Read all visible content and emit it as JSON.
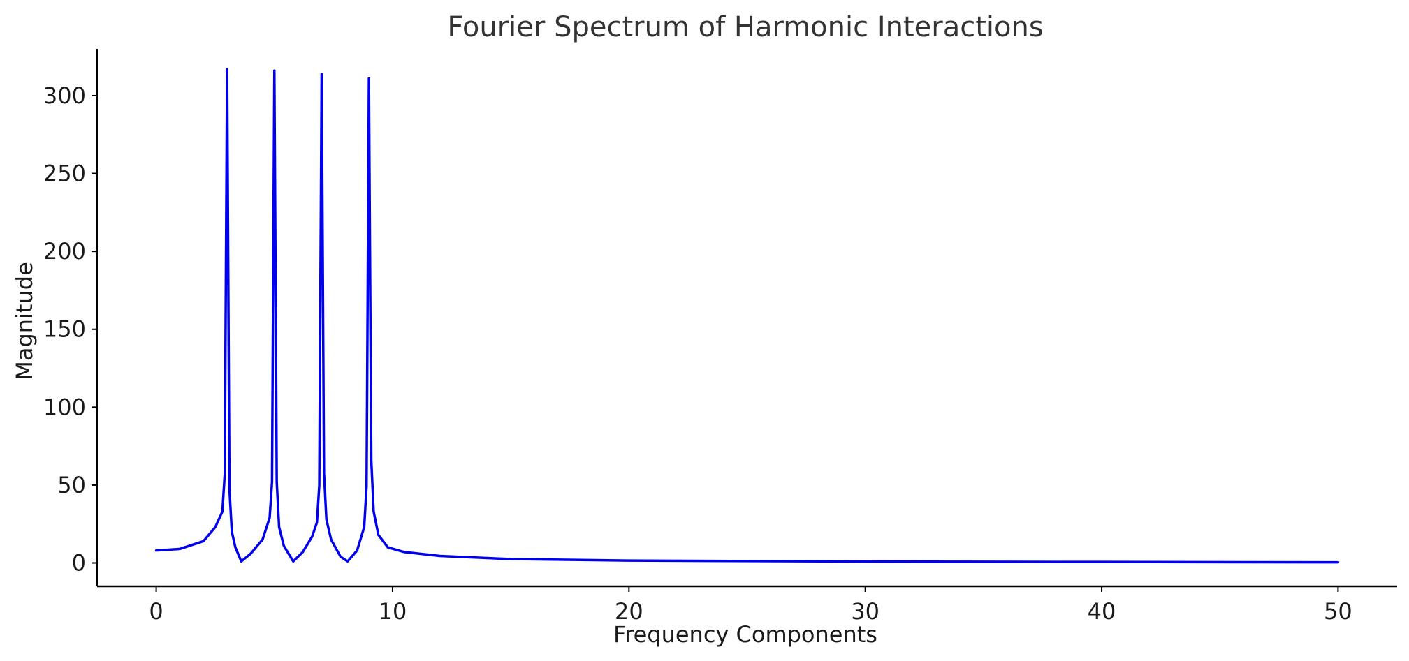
{
  "chart_data": {
    "type": "line",
    "title": "Fourier Spectrum of Harmonic Interactions",
    "xlabel": "Frequency Components",
    "ylabel": "Magnitude",
    "xlim": [
      -2.5,
      52.5
    ],
    "ylim": [
      -15,
      330
    ],
    "xticks": [
      0,
      10,
      20,
      30,
      40,
      50
    ],
    "yticks": [
      0,
      50,
      100,
      150,
      200,
      250,
      300
    ],
    "grid": false,
    "legend": "none",
    "series": [
      {
        "color": "#0000ee",
        "x": [
          0,
          1,
          2,
          2.5,
          2.8,
          2.9,
          3.0,
          3.1,
          3.2,
          3.35,
          3.6,
          4.0,
          4.5,
          4.8,
          4.9,
          5.0,
          5.1,
          5.2,
          5.4,
          5.8,
          6.2,
          6.6,
          6.8,
          6.9,
          7.0,
          7.1,
          7.2,
          7.4,
          7.8,
          8.1,
          8.5,
          8.8,
          8.9,
          9.0,
          9.1,
          9.2,
          9.4,
          9.8,
          10.5,
          12,
          15,
          20,
          30,
          40,
          50
        ],
        "y": [
          8,
          9,
          14,
          23,
          33,
          57,
          317,
          47,
          20,
          10,
          1,
          6,
          15,
          29,
          52,
          316,
          52,
          23,
          11,
          1,
          7,
          17,
          26,
          50,
          314,
          58,
          28,
          15,
          4,
          1,
          8,
          23,
          49,
          311,
          66,
          33,
          18,
          10,
          7,
          4.5,
          2.5,
          1.5,
          0.9,
          0.6,
          0.4
        ]
      }
    ]
  }
}
